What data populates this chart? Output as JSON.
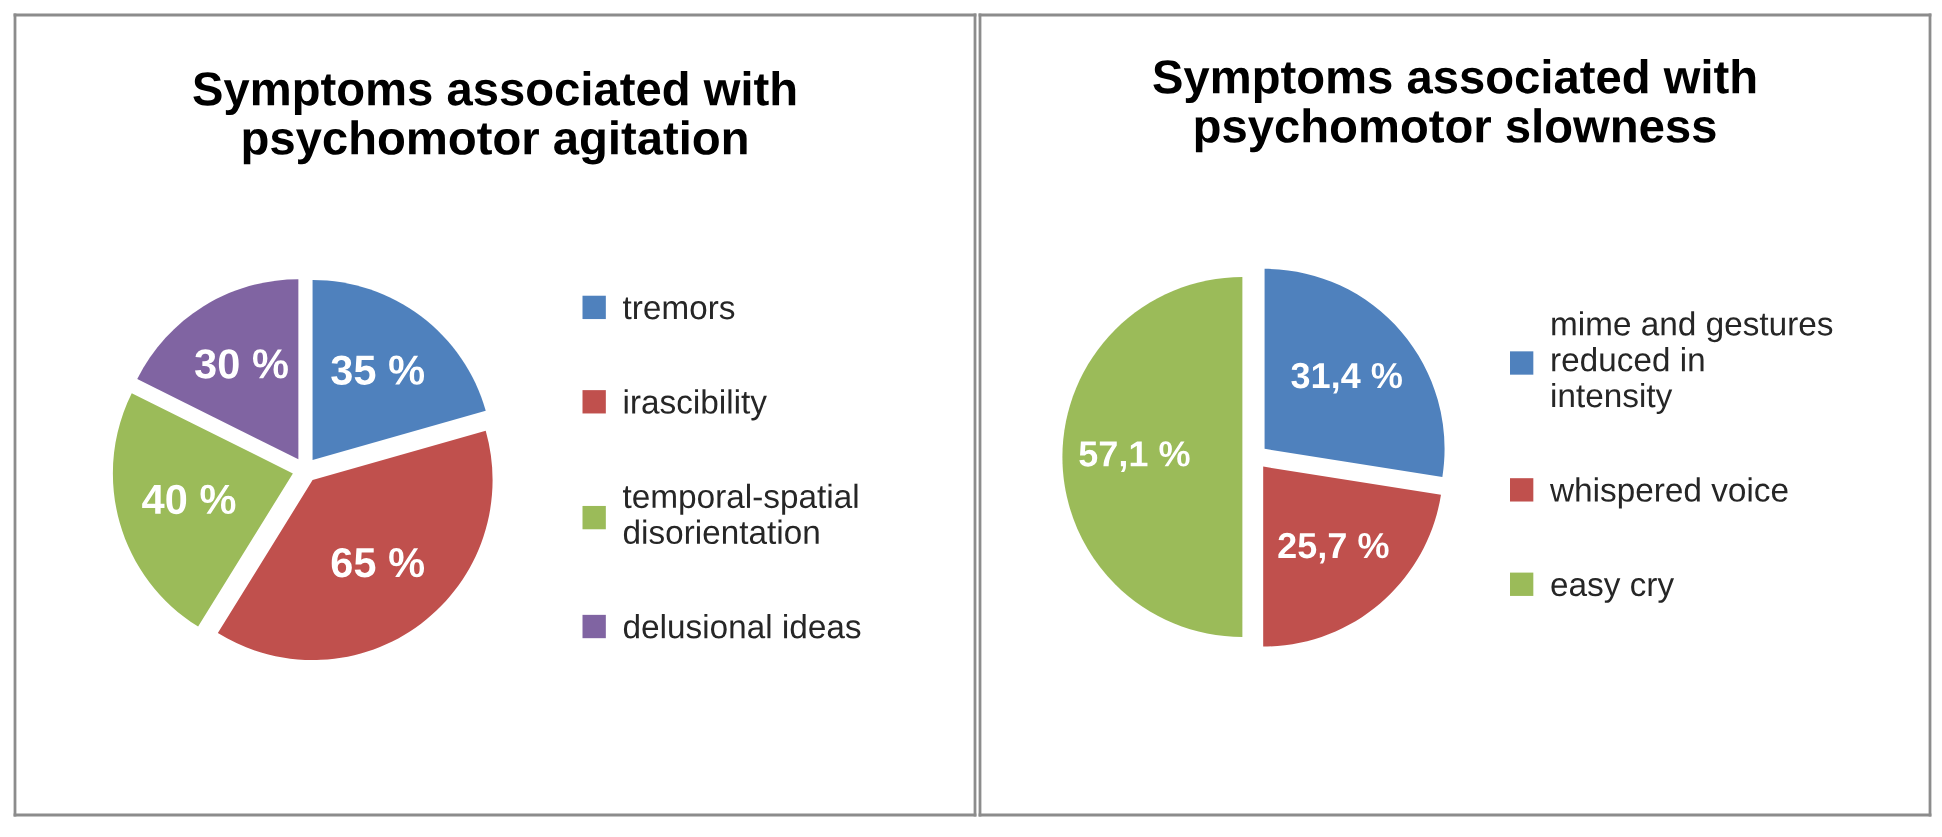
{
  "chart_data": [
    {
      "type": "pie",
      "title": "Symptoms associated with\npsychomotor agitation",
      "categories": [
        "tremors",
        "irascibility",
        "temporal-spatial\ndisorientation",
        "delusional ideas"
      ],
      "values": [
        35,
        65,
        40,
        30
      ],
      "value_labels": [
        "35 %",
        "65 %",
        "40 %",
        "30 %"
      ],
      "colors": [
        "#4f81bd",
        "#c0504d",
        "#9bbb59",
        "#8064a2"
      ],
      "legend": "right"
    },
    {
      "type": "pie",
      "title": "Symptoms associated with\npsychomotor slowness",
      "categories": [
        "mime and gestures\nreduced in\nintensity",
        "whispered voice",
        "easy cry"
      ],
      "values": [
        31.4,
        25.7,
        57.1
      ],
      "value_labels": [
        "31,4 %",
        "25,7 %",
        "57,1 %"
      ],
      "colors": [
        "#4f81bd",
        "#c0504d",
        "#9bbb59"
      ],
      "legend": "right"
    }
  ]
}
